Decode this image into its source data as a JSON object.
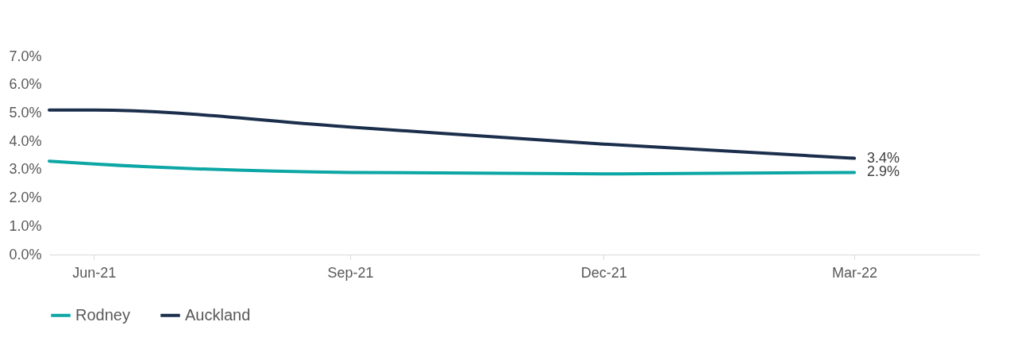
{
  "chart_data": {
    "type": "line",
    "x": [
      "2021-05-16",
      "2021-06",
      "2021-09",
      "2021-12",
      "2022-03"
    ],
    "series": [
      {
        "name": "Rodney",
        "color": "#0ca6a5",
        "values": [
          3.3,
          3.2,
          2.9,
          2.85,
          2.9
        ],
        "value_labels": [
          null,
          null,
          null,
          null,
          "2.9%"
        ]
      },
      {
        "name": "Auckland",
        "color": "#1b2e4b",
        "values": [
          5.1,
          5.1,
          4.5,
          3.9,
          3.4
        ],
        "value_labels": [
          null,
          null,
          null,
          null,
          "3.4%"
        ]
      }
    ],
    "xlim": [
      "2021-05-16",
      "2022-04-15"
    ],
    "xticks": [
      {
        "value": "2021-06",
        "label": "Jun-21"
      },
      {
        "value": "2021-09",
        "label": "Sep-21"
      },
      {
        "value": "2021-12",
        "label": "Dec-21"
      },
      {
        "value": "2022-03",
        "label": "Mar-22"
      }
    ],
    "ylim": [
      0,
      7
    ],
    "yticks": [
      {
        "value": 0,
        "label": "0.0%"
      },
      {
        "value": 1,
        "label": "1.0%"
      },
      {
        "value": 2,
        "label": "2.0%"
      },
      {
        "value": 3,
        "label": "3.0%"
      },
      {
        "value": 4,
        "label": "4.0%"
      },
      {
        "value": 5,
        "label": "5.0%"
      },
      {
        "value": 6,
        "label": "6.0%"
      },
      {
        "value": 7,
        "label": "7.0%"
      }
    ],
    "grid": false,
    "legend": "bottom",
    "marker": "none",
    "line_style": "solid"
  }
}
